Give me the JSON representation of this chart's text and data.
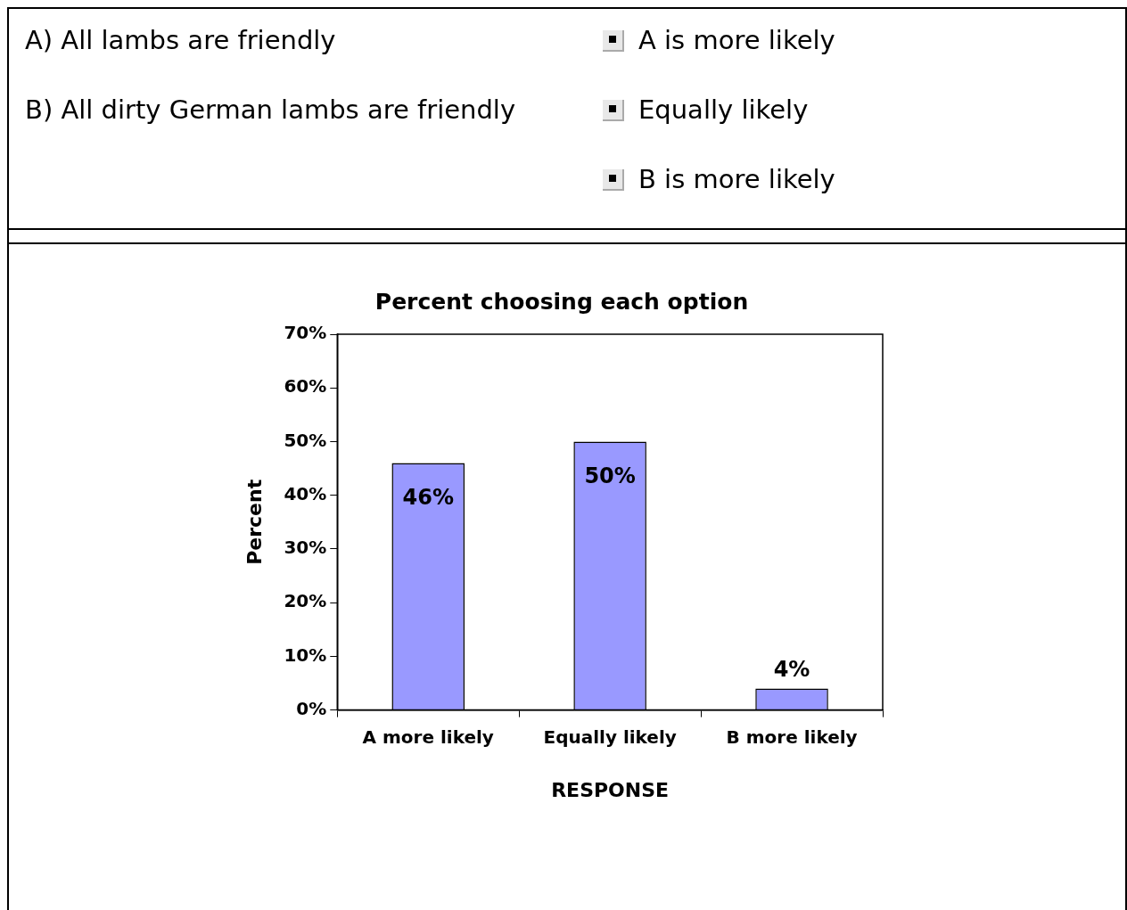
{
  "chart_data": {
    "type": "bar",
    "title": "Percent choosing each option",
    "xlabel": "RESPONSE",
    "ylabel": "Percent",
    "categories": [
      "A more likely",
      "Equally likely",
      "B more likely"
    ],
    "values": [
      46,
      50,
      4
    ],
    "color": "#9999ff",
    "value_labels": [
      "46%",
      "50%",
      "4%"
    ],
    "ylim": [
      0,
      70
    ],
    "yticks": [
      {
        "value": 0,
        "label": "0%"
      },
      {
        "value": 10,
        "label": "10%"
      },
      {
        "value": 20,
        "label": "20%"
      },
      {
        "value": 30,
        "label": "30%"
      },
      {
        "value": 40,
        "label": "40%"
      },
      {
        "value": 50,
        "label": "50%"
      },
      {
        "value": 60,
        "label": "60%"
      },
      {
        "value": 70,
        "label": "70%"
      }
    ],
    "grid": false,
    "legend": false,
    "annotations": [
      "A) All lambs are friendly",
      "B) All dirty German lambs are friendly",
      "A is more likely",
      "Equally likely",
      "B is more likely"
    ]
  }
}
